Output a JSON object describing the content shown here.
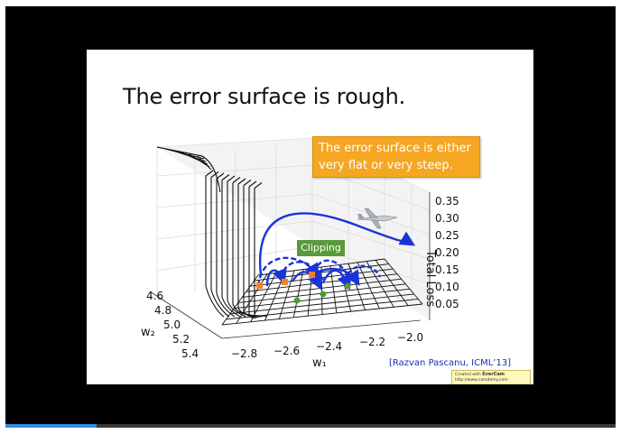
{
  "slide": {
    "title": "The error surface is rough.",
    "callout_lines": [
      "The error surface is either",
      "very flat or very steep."
    ],
    "clipping_label": "Clipping",
    "citation": "[Razvan Pascanu, ICML’13]",
    "evercam": {
      "line1_prefix": "Created with",
      "brand": "EverCam",
      "url": "http://www.camdemy.com"
    }
  },
  "chart_data": {
    "type": "surface",
    "title": "",
    "zlabel": "Total Loss",
    "xlabel": "w₁",
    "ylabel": "w₂",
    "x_ticks": [
      "−2.8",
      "−2.6",
      "−2.4",
      "−2.2",
      "−2.0"
    ],
    "y_ticks": [
      "4.6",
      "4.8",
      "5.0",
      "5.2",
      "5.4"
    ],
    "z_ticks": [
      "0.35",
      "0.30",
      "0.25",
      "0.20",
      "0.15",
      "0.10",
      "0.05"
    ],
    "zlim": [
      0.05,
      0.35
    ],
    "grid": true,
    "colors": {
      "trajectory": "#1a35d6",
      "steep_point": "#f0812b",
      "flat_point": "#4f9a35"
    }
  },
  "player": {
    "progress": 0.15
  }
}
